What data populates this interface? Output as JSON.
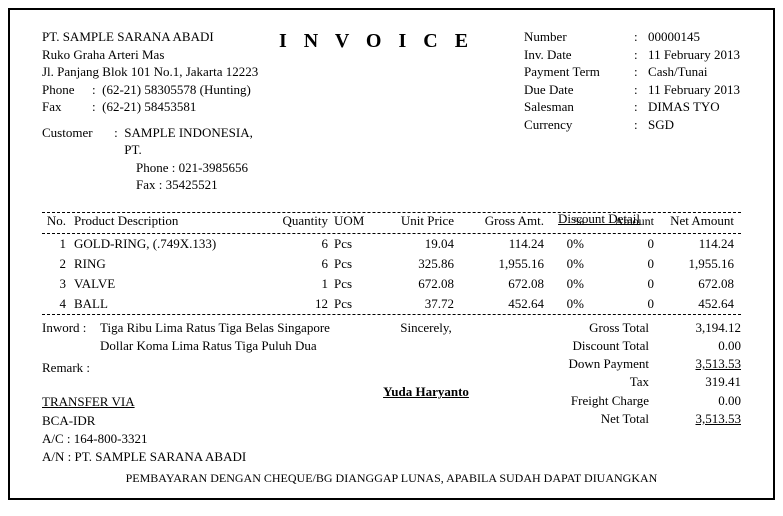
{
  "company": {
    "name": "PT. SAMPLE SARANA ABADI",
    "addr1": "Ruko Graha Arteri Mas",
    "addr2": "Jl. Panjang Blok 101 No.1, Jakarta 12223",
    "phone_label": "Phone",
    "phone": "(62-21) 58305578 (Hunting)",
    "fax_label": "Fax",
    "fax": "(62-21) 58453581"
  },
  "title": "I N V O I C E",
  "meta": {
    "number_label": "Number",
    "number": "00000145",
    "date_label": "Inv. Date",
    "date": "11 February 2013",
    "term_label": "Payment Term",
    "term": "Cash/Tunai",
    "due_label": "Due Date",
    "due": "11 February 2013",
    "salesman_label": "Salesman",
    "salesman": "DIMAS TYO",
    "currency_label": "Currency",
    "currency": "SGD"
  },
  "customer": {
    "label": "Customer",
    "name": "SAMPLE  INDONESIA, PT.",
    "contact": "Phone : 021-3985656   Fax : 35425521"
  },
  "thead": {
    "no": "No.",
    "desc": "Product Description",
    "qty": "Quantity",
    "uom": "UOM",
    "unit": "Unit Price",
    "gross": "Gross Amt.",
    "disc": "Discount Detail",
    "disc_pct": "%",
    "disc_amt": "Amount",
    "net": "Net Amount"
  },
  "items": [
    {
      "no": "1",
      "desc": "GOLD-RING, (.749X.133)",
      "qty": "6",
      "uom": "Pcs",
      "unit": "19.04",
      "gross": "114.24",
      "pct": "0%",
      "amt": "0",
      "net": "114.24"
    },
    {
      "no": "2",
      "desc": "RING",
      "qty": "6",
      "uom": "Pcs",
      "unit": "325.86",
      "gross": "1,955.16",
      "pct": "0%",
      "amt": "0",
      "net": "1,955.16"
    },
    {
      "no": "3",
      "desc": "VALVE",
      "qty": "1",
      "uom": "Pcs",
      "unit": "672.08",
      "gross": "672.08",
      "pct": "0%",
      "amt": "0",
      "net": "672.08"
    },
    {
      "no": "4",
      "desc": "BALL",
      "qty": "12",
      "uom": "Pcs",
      "unit": "37.72",
      "gross": "452.64",
      "pct": "0%",
      "amt": "0",
      "net": "452.64"
    }
  ],
  "inword": {
    "label": "Inword :",
    "text": "Tiga Ribu Lima Ratus Tiga Belas Singapore Dollar Koma Lima Ratus Tiga Puluh Dua"
  },
  "remark_label": "Remark :",
  "transfer": {
    "title": "TRANSFER VIA",
    "bank": "BCA-IDR",
    "ac": "A/C : 164-800-3321",
    "an": "A/N : PT. SAMPLE SARANA ABADI"
  },
  "signature": {
    "sincerely": "Sincerely,",
    "name": "Yuda  Haryanto"
  },
  "totals": {
    "gross_label": "Gross Total",
    "gross": "3,194.12",
    "disc_label": "Discount Total",
    "disc": "0.00",
    "dp_label": "Down Payment",
    "dp": "3,513.53",
    "tax_label": "Tax",
    "tax": "319.41",
    "freight_label": "Freight Charge",
    "freight": "0.00",
    "net_label": "Net Total",
    "net": "3,513.53"
  },
  "footer_note": "PEMBAYARAN DENGAN CHEQUE/BG DIANGGAP LUNAS, APABILA SUDAH DAPAT DIUANGKAN"
}
